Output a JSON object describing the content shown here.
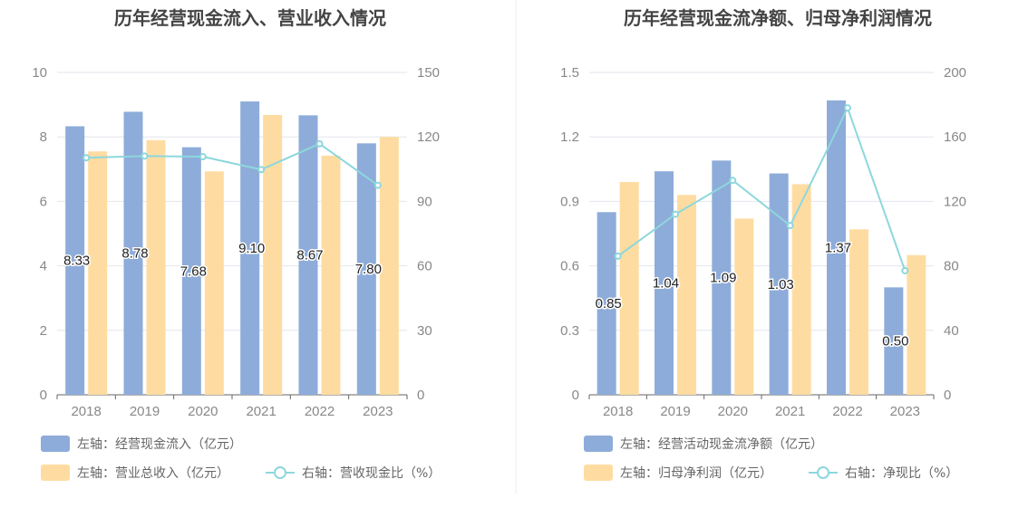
{
  "colors": {
    "bar_primary": "#8EACD9",
    "bar_secondary": "#FEDCA1",
    "line": "#8DD7DD",
    "grid": "#E3E6EE",
    "axis": "#666666",
    "divider": "#EEEEEE"
  },
  "chart_data": [
    {
      "type": "bar",
      "title": "历年经营现金流入、营业收入情况",
      "categories": [
        "2018",
        "2019",
        "2020",
        "2021",
        "2022",
        "2023"
      ],
      "y_left": {
        "ticks": [
          "0",
          "2",
          "4",
          "6",
          "8",
          "10"
        ],
        "ylim": [
          0,
          10
        ]
      },
      "y_right": {
        "ticks": [
          "0",
          "30",
          "60",
          "90",
          "120",
          "150"
        ],
        "ylim": [
          0,
          150
        ]
      },
      "grid": true,
      "legend_position": "bottom",
      "series": [
        {
          "name": "左轴：经营现金流入（亿元）",
          "kind": "bar",
          "axis": "left",
          "values": [
            8.33,
            8.78,
            7.68,
            9.1,
            8.67,
            7.8
          ],
          "labels": [
            "8.33",
            "8.78",
            "7.68",
            "9.10",
            "8.67",
            "7.80"
          ]
        },
        {
          "name": "左轴：营业总收入（亿元）",
          "kind": "bar",
          "axis": "left",
          "values": [
            7.55,
            7.9,
            6.93,
            8.68,
            7.42,
            8.0
          ]
        },
        {
          "name": "右轴：营收现金比（%）",
          "kind": "line",
          "axis": "right",
          "values": [
            110.3,
            111.1,
            110.8,
            104.8,
            116.8,
            97.5
          ]
        }
      ]
    },
    {
      "type": "bar",
      "title": "历年经营现金流净额、归母净利润情况",
      "categories": [
        "2018",
        "2019",
        "2020",
        "2021",
        "2022",
        "2023"
      ],
      "y_left": {
        "ticks": [
          "0",
          "0.3",
          "0.6",
          "0.9",
          "1.2",
          "1.5"
        ],
        "ylim": [
          0,
          1.5
        ]
      },
      "y_right": {
        "ticks": [
          "0",
          "40",
          "80",
          "120",
          "160",
          "200"
        ],
        "ylim": [
          0,
          200
        ]
      },
      "grid": true,
      "legend_position": "bottom",
      "series": [
        {
          "name": "左轴：经营活动现金流净额（亿元）",
          "kind": "bar",
          "axis": "left",
          "values": [
            0.85,
            1.04,
            1.09,
            1.03,
            1.37,
            0.5
          ],
          "labels": [
            "0.85",
            "1.04",
            "1.09",
            "1.03",
            "1.37",
            "0.50"
          ]
        },
        {
          "name": "左轴：归母净利润（亿元）",
          "kind": "bar",
          "axis": "left",
          "values": [
            0.99,
            0.93,
            0.82,
            0.98,
            0.77,
            0.65
          ]
        },
        {
          "name": "右轴：净现比（%）",
          "kind": "line",
          "axis": "right",
          "values": [
            86,
            112,
            133,
            105,
            178,
            77
          ]
        }
      ]
    }
  ]
}
